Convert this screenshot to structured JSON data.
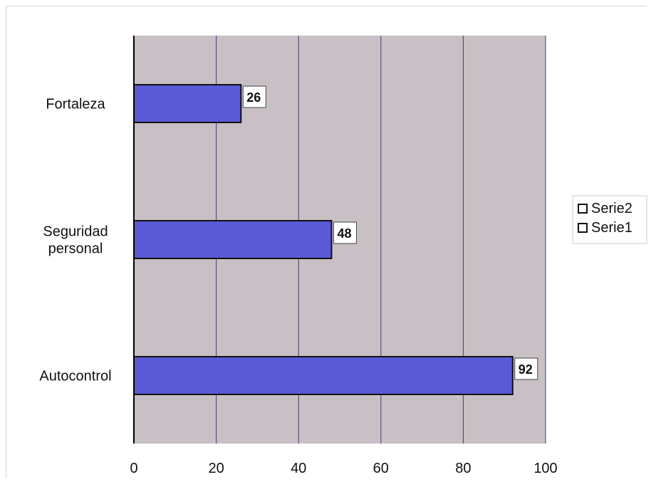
{
  "chart_data": {
    "type": "bar",
    "orientation": "horizontal",
    "categories": [
      "Autocontrol",
      "Seguridad personal",
      "Fortaleza"
    ],
    "category_lines": [
      [
        "Autocontrol"
      ],
      [
        "Seguridad",
        "personal"
      ],
      [
        "Fortaleza"
      ]
    ],
    "series": [
      {
        "name": "Serie1",
        "values": [
          92,
          48,
          26
        ]
      },
      {
        "name": "Serie2",
        "values": [
          null,
          null,
          null
        ]
      }
    ],
    "data_labels": [
      "92",
      "48",
      "26"
    ],
    "xlim": [
      0,
      100
    ],
    "x_ticks": [
      0,
      20,
      40,
      60,
      80,
      100
    ],
    "grid": true,
    "legend_position": "right",
    "legend": [
      "Serie2",
      "Serie1"
    ],
    "colors": {
      "plot_background": "#c8c0c4",
      "bar_fill": "#5a5ad6",
      "bar_stroke": "#111111",
      "grid": "#3a3f7a",
      "label_box": "#ffffff"
    }
  }
}
